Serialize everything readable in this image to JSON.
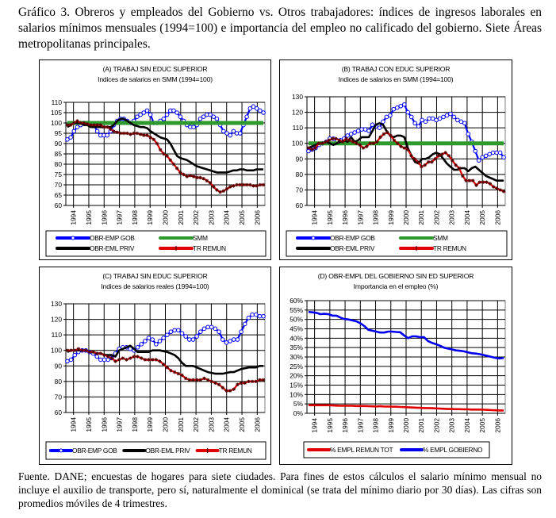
{
  "caption": "Gráfico 3. Obreros y empleados del Gobierno vs. Otros trabajadores: índices de ingresos laborales en salarios mínimos mensuales (1994=100) e importancia del empleo no calificado del gobierno. Siete Áreas metropolitanas principales.",
  "footnote": "Fuente. DANE; encuestas de hogares para siete ciudades. Para fines de estos cálculos el salario mínimo mensual no incluye el auxilio de transporte, pero sí, naturalmente el dominical (se trata del mínimo diario por 30 días). Las cifras son promedios móviles de 4 trimestres.",
  "chart_data": [
    {
      "id": "A",
      "type": "line",
      "title": "(A) TRABAJ SIN EDUC SUPERIOR",
      "subtitle": "Indices de salarios en SMM (1994=100)",
      "xlabel": "",
      "ylabel": "",
      "categories": [
        "1994",
        "1995",
        "1996",
        "1997",
        "1998",
        "1999",
        "2000",
        "2001",
        "2002",
        "2003",
        "2004",
        "2005",
        "2006"
      ],
      "ylim": [
        60,
        110
      ],
      "yticks": [
        60,
        65,
        70,
        75,
        80,
        85,
        90,
        95,
        100,
        105,
        110
      ],
      "grid": true,
      "legend": "bottom",
      "series": [
        {
          "name": "OBR-EMP GOB",
          "color": "#0000ff",
          "marker": "circle",
          "values": [
            92,
            93,
            96,
            98,
            99,
            100,
            100,
            99,
            99,
            96,
            94,
            94,
            94,
            96,
            99,
            101,
            102,
            102,
            101,
            100,
            101,
            103,
            104,
            105,
            106,
            104,
            100,
            100,
            101,
            102,
            104,
            106,
            106,
            105,
            103,
            101,
            99,
            98,
            98,
            99,
            102,
            103,
            104,
            104,
            103,
            102,
            99,
            96,
            95,
            94,
            96,
            95,
            95,
            99,
            103,
            107,
            108,
            107,
            106,
            105
          ]
        },
        {
          "name": "SMM",
          "color": "#2e9a2e",
          "marker": "none",
          "values": [
            100,
            100,
            100,
            100,
            100,
            100,
            100,
            100,
            100,
            100,
            100,
            100,
            100,
            100,
            100,
            100,
            100,
            100,
            100,
            100,
            100,
            100,
            100,
            100,
            100,
            100,
            100,
            100,
            100,
            100,
            100,
            100,
            100,
            100,
            100,
            100,
            100,
            100,
            100,
            100,
            100,
            100,
            100,
            100,
            100,
            100,
            100,
            100,
            100,
            100,
            100,
            100,
            100,
            100,
            100,
            100,
            100,
            100,
            100,
            100
          ]
        },
        {
          "name": "OBR-EML PRIV",
          "color": "#000000",
          "marker": "none",
          "values": [
            98,
            99,
            100,
            100,
            100,
            99,
            99,
            98,
            98,
            98,
            98,
            98,
            98,
            98,
            99,
            101,
            102,
            102,
            101,
            100,
            99,
            98.5,
            98,
            98,
            97.5,
            96,
            95,
            94,
            93,
            92.5,
            92,
            90,
            87,
            84,
            83,
            82.5,
            82,
            81,
            80,
            79,
            78.5,
            78,
            77.5,
            77,
            76.5,
            76,
            76,
            76,
            76,
            76.5,
            77,
            77,
            77.5,
            77.5,
            77,
            77,
            77,
            77.5,
            77.5,
            77.5
          ]
        },
        {
          "name": "TR REMUN",
          "color": "#e00000",
          "marker": "star",
          "values": [
            99,
            99,
            100,
            101,
            100,
            100,
            99.5,
            99,
            99,
            99,
            99,
            98,
            98,
            97,
            96,
            95.5,
            95,
            95,
            95,
            94.5,
            95,
            95,
            94.5,
            94,
            94,
            93,
            92,
            90,
            87,
            85,
            84,
            82,
            80,
            78,
            76,
            75,
            74,
            74.5,
            74,
            73.5,
            73.5,
            73,
            72,
            71,
            69,
            67.5,
            66.5,
            67,
            68,
            69,
            69.5,
            70,
            70,
            70,
            70,
            70,
            69.5,
            69.5,
            70,
            70
          ]
        }
      ]
    },
    {
      "id": "B",
      "type": "line",
      "title": "(B) TRABAJ CON EDUC SUPERIOR",
      "subtitle": "Indices de salarios en SMM (1994=100)",
      "xlabel": "",
      "ylabel": "",
      "categories": [
        "1994",
        "1995",
        "1996",
        "1997",
        "1998",
        "1999",
        "2000",
        "2001",
        "2002",
        "2003",
        "2004",
        "2005",
        "2006"
      ],
      "ylim": [
        60,
        130
      ],
      "yticks": [
        60,
        70,
        80,
        90,
        100,
        110,
        120,
        130
      ],
      "grid": true,
      "legend": "bottom",
      "series": [
        {
          "name": "OBR-EMP GOB",
          "color": "#0000ff",
          "marker": "circle",
          "values": [
            95,
            96,
            97,
            99,
            100,
            101,
            103,
            103,
            102,
            102,
            103,
            105,
            106,
            107,
            108,
            109,
            109,
            108,
            112,
            111,
            110,
            114,
            117,
            118,
            122,
            123,
            124,
            125,
            120,
            117,
            113,
            111,
            115,
            114,
            116,
            116,
            115,
            116,
            117,
            118,
            119,
            117,
            115,
            114,
            113,
            106,
            101,
            95,
            89,
            91,
            92,
            93,
            94,
            94,
            94,
            91
          ]
        },
        {
          "name": "SMM",
          "color": "#2e9a2e",
          "marker": "none",
          "values": [
            100,
            100,
            100,
            100,
            100,
            100,
            100,
            100,
            100,
            100,
            100,
            100,
            100,
            100,
            100,
            100,
            100,
            100,
            100,
            100,
            100,
            100,
            100,
            100,
            100,
            100,
            100,
            100,
            100,
            100,
            100,
            100,
            100,
            100,
            100,
            100,
            100,
            100,
            100,
            100,
            100,
            100,
            100,
            100,
            100,
            100,
            100,
            100,
            100,
            100,
            100,
            100,
            100,
            100,
            100,
            100
          ]
        },
        {
          "name": "OBR-EML PRIV",
          "color": "#000000",
          "marker": "none",
          "values": [
            97,
            98,
            99,
            100,
            100,
            101,
            100,
            99,
            100,
            101,
            102,
            101,
            104,
            101,
            102,
            104,
            104,
            104,
            108,
            112,
            113,
            112,
            108,
            105,
            104,
            105,
            105,
            104,
            97,
            92,
            88,
            87,
            90,
            90,
            91,
            93,
            94,
            93,
            90,
            87,
            85,
            83,
            83,
            84,
            84,
            82,
            84,
            85,
            83,
            81,
            79,
            78,
            77,
            76,
            76,
            76
          ]
        },
        {
          "name": "TR REMUN",
          "color": "#e00000",
          "marker": "star",
          "values": [
            97,
            96,
            97,
            100,
            100,
            101,
            102,
            103,
            103,
            102,
            101,
            103,
            102,
            101,
            100,
            99,
            97,
            98,
            100,
            100,
            101,
            104,
            106,
            107,
            105,
            102,
            100,
            98,
            97,
            96,
            92,
            90,
            88,
            85,
            86,
            88,
            88,
            90,
            92,
            93,
            94,
            92,
            89,
            86,
            84,
            79,
            76,
            76,
            76,
            73,
            75,
            75,
            75,
            74,
            72,
            71,
            70,
            69
          ]
        }
      ]
    },
    {
      "id": "C",
      "type": "line",
      "title": "(C) TRABAJ SIN EDUC SUPERIOR",
      "subtitle": "Indices de salarios reales (1994=100)",
      "xlabel": "",
      "ylabel": "",
      "categories": [
        "1994",
        "1995",
        "1996",
        "1997",
        "1998",
        "1999",
        "2000",
        "2001",
        "2002",
        "2003",
        "2004",
        "2005",
        "2006"
      ],
      "ylim": [
        60,
        130
      ],
      "yticks": [
        60,
        70,
        80,
        90,
        100,
        110,
        120,
        130
      ],
      "grid": true,
      "legend": "bottom",
      "series": [
        {
          "name": "OBR-EMP GOB",
          "color": "#0000ff",
          "marker": "circle",
          "values": [
            93,
            94,
            97,
            99,
            100,
            100,
            99,
            98,
            96,
            94,
            94,
            94,
            95,
            98,
            101,
            102,
            102,
            101,
            100,
            102,
            104,
            106,
            108,
            107,
            104,
            106,
            108,
            110,
            112,
            113,
            113,
            111,
            109,
            107,
            107,
            109,
            112,
            114,
            115,
            115,
            114,
            112,
            107,
            105,
            106,
            107,
            107,
            112,
            117,
            121,
            123,
            123,
            122,
            122
          ]
        },
        {
          "name": "OBR-EML PRIV",
          "color": "#000000",
          "marker": "none",
          "values": [
            99,
            100,
            100,
            100,
            100,
            100,
            99,
            99,
            98,
            98,
            97,
            97,
            97,
            96,
            100,
            101,
            102,
            103,
            101,
            99,
            99,
            99,
            99,
            100,
            100,
            100,
            99.5,
            99,
            98,
            97,
            95,
            92,
            90,
            90,
            90,
            89,
            88,
            87,
            86,
            85.5,
            85,
            85,
            85,
            85.5,
            86,
            86,
            87,
            88,
            88.5,
            89,
            89,
            89,
            90,
            90
          ]
        },
        {
          "name": "TR REMUN",
          "color": "#e00000",
          "marker": "star",
          "values": [
            100,
            100,
            100,
            101,
            100,
            100,
            99,
            99,
            98,
            98,
            97,
            96,
            95,
            93,
            94,
            95,
            94,
            95,
            96,
            96,
            95,
            94,
            94,
            94,
            94,
            93,
            91,
            89,
            87,
            86,
            85,
            84,
            82,
            81,
            81,
            81,
            81,
            82,
            81,
            80,
            79,
            78,
            76,
            74,
            74,
            75,
            78,
            79,
            79,
            80,
            80,
            80,
            81,
            81
          ]
        }
      ]
    },
    {
      "id": "D",
      "type": "line",
      "title": "(D)  OBR-EMPL DEL GOBIERNO SIN ED SUPERIOR",
      "subtitle": "Importancia en el empleo (%)",
      "xlabel": "",
      "ylabel": "",
      "categories": [
        "1994",
        "1995",
        "1996",
        "1997",
        "1998",
        "1999",
        "2000",
        "2001",
        "2002",
        "2003",
        "2004",
        "2005",
        "2006"
      ],
      "ylim": [
        0,
        60
      ],
      "yticks": [
        "0%",
        "5%",
        "10%",
        "15%",
        "20%",
        "25%",
        "30%",
        "35%",
        "40%",
        "45%",
        "50%",
        "55%",
        "60%"
      ],
      "grid": true,
      "legend": "bottom",
      "series": [
        {
          "name": "% EMPL REMUN TOT",
          "color": "#e00000",
          "marker": "none",
          "values": [
            4.3,
            4.3,
            4.3,
            4.3,
            4.3,
            4.3,
            4.2,
            4.1,
            4.0,
            4.0,
            4.0,
            4.0,
            3.9,
            3.9,
            3.9,
            3.8,
            3.7,
            3.6,
            3.8,
            3.6,
            3.6,
            3.5,
            3.5,
            3.4,
            3.3,
            3.2,
            3.1,
            3.0,
            2.9,
            2.8,
            2.8,
            2.7,
            2.6,
            2.5,
            2.4,
            2.3,
            2.3,
            2.2,
            2.2,
            2.1,
            2.1,
            2.0,
            2.0,
            2.0,
            1.9,
            1.8,
            1.7,
            1.6,
            1.5,
            1.5
          ]
        },
        {
          "name": "% EMPL GOBIERNO",
          "color": "#0000ee",
          "marker": "none",
          "values": [
            54,
            53.8,
            53.5,
            52.8,
            53,
            52.8,
            52,
            52,
            51,
            50.2,
            50,
            49.5,
            49,
            48,
            46.5,
            44.5,
            44,
            43.5,
            43,
            43,
            43.5,
            43.5,
            43.3,
            43.2,
            41.5,
            40,
            41,
            41,
            40.5,
            40.5,
            38.5,
            37.5,
            36.8,
            36,
            35,
            34.5,
            34,
            33.5,
            33.3,
            33,
            32.5,
            32,
            31.8,
            31.5,
            31,
            30.5,
            30,
            29.5,
            29.2,
            29.5
          ]
        }
      ]
    }
  ]
}
